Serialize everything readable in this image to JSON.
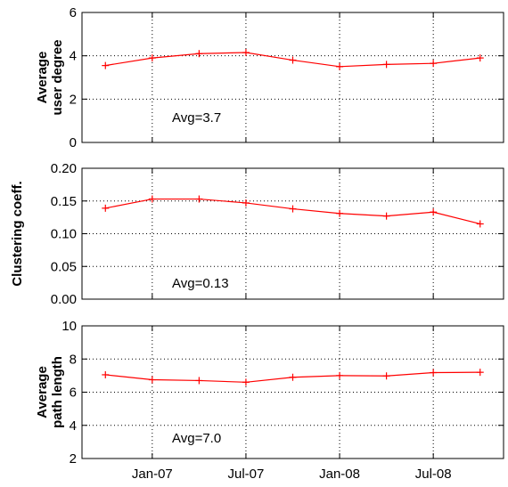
{
  "colors": {
    "series": "#ff0000",
    "grid": "#000000",
    "axis": "#000000"
  },
  "x_tick_labels": [
    "Jan-07",
    "Jul-07",
    "Jan-08",
    "Jul-08"
  ],
  "chart_data": [
    {
      "type": "line",
      "ylabel": [
        "Average",
        "user degree"
      ],
      "ylim": [
        0,
        6
      ],
      "yticks": [
        0,
        2,
        4,
        6
      ],
      "ytick_labels": [
        "0",
        "2",
        "4",
        "6"
      ],
      "annotation": "Avg=3.7",
      "x": [
        "2006-10",
        "2007-01",
        "2007-04",
        "2007-07",
        "2007-10",
        "2008-01",
        "2008-04",
        "2008-07",
        "2008-10"
      ],
      "xtick_positions": [
        "2007-01",
        "2007-07",
        "2008-01",
        "2008-07"
      ],
      "values": [
        3.55,
        3.9,
        4.1,
        4.15,
        3.8,
        3.5,
        3.6,
        3.65,
        3.9
      ],
      "grid": true
    },
    {
      "type": "line",
      "ylabel": [
        "Clustering coeff."
      ],
      "ylim": [
        0,
        0.2
      ],
      "yticks": [
        0,
        0.05,
        0.1,
        0.15,
        0.2
      ],
      "ytick_labels": [
        "0.00",
        "0.05",
        "0.10",
        "0.15",
        "0.20"
      ],
      "annotation": "Avg=0.13",
      "x": [
        "2006-10",
        "2007-01",
        "2007-04",
        "2007-07",
        "2007-10",
        "2008-01",
        "2008-04",
        "2008-07",
        "2008-10"
      ],
      "xtick_positions": [
        "2007-01",
        "2007-07",
        "2008-01",
        "2008-07"
      ],
      "values": [
        0.139,
        0.153,
        0.153,
        0.147,
        0.138,
        0.131,
        0.127,
        0.133,
        0.115
      ],
      "grid": true
    },
    {
      "type": "line",
      "ylabel": [
        "Average",
        "path length"
      ],
      "ylim": [
        2,
        10
      ],
      "yticks": [
        2,
        4,
        6,
        8,
        10
      ],
      "ytick_labels": [
        "2",
        "4",
        "6",
        "8",
        "10"
      ],
      "annotation": "Avg=7.0",
      "x": [
        "2006-10",
        "2007-01",
        "2007-04",
        "2007-07",
        "2007-10",
        "2008-01",
        "2008-04",
        "2008-07",
        "2008-10"
      ],
      "xtick_positions": [
        "2007-01",
        "2007-07",
        "2008-01",
        "2008-07"
      ],
      "values": [
        7.05,
        6.75,
        6.7,
        6.6,
        6.9,
        7.0,
        6.98,
        7.18,
        7.2
      ],
      "grid": true
    }
  ]
}
